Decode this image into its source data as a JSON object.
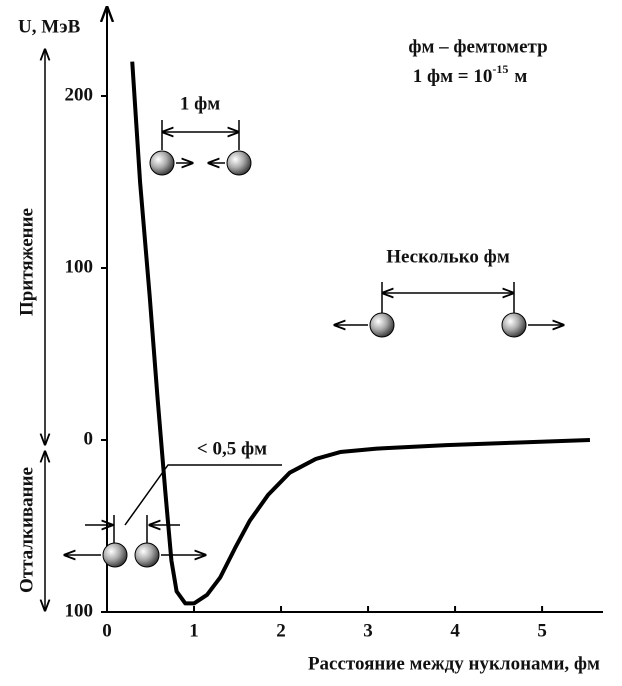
{
  "chart_data": {
    "type": "line",
    "y_label": "U, МэВ",
    "x_label": "Расстояние между нуклонами, фм",
    "note_line1": "фм – фемтометр",
    "note_line2": "1 фм = 10",
    "note_exponent": "-15",
    "note_unit": "м",
    "label_1fm": "1 фм",
    "label_several": "Несколько фм",
    "label_half": "< 0,5 фм",
    "side_attraction": "Притяжение",
    "side_repulsion": "Отталкивание",
    "x": [
      0.29,
      0.38,
      0.49,
      0.58,
      0.67,
      0.74,
      0.8,
      0.9,
      1.0,
      1.15,
      1.3,
      1.47,
      1.64,
      1.85,
      2.1,
      2.4,
      2.68,
      3.1,
      3.9,
      4.7,
      5.55
    ],
    "values": [
      220,
      150,
      84,
      25,
      -30,
      -70,
      -88,
      -95,
      -95,
      -90,
      -80,
      -63,
      -47,
      -32,
      -19,
      -11,
      -7,
      -5,
      -3,
      -1.5,
      0
    ],
    "color": "#000000",
    "xlim": [
      0,
      5.7
    ],
    "ylim": [
      -100,
      250
    ],
    "xticks": [
      0,
      1,
      2,
      3,
      4,
      5
    ],
    "yticks": [
      {
        "value": -100,
        "label": "100"
      },
      0,
      100,
      200
    ]
  }
}
